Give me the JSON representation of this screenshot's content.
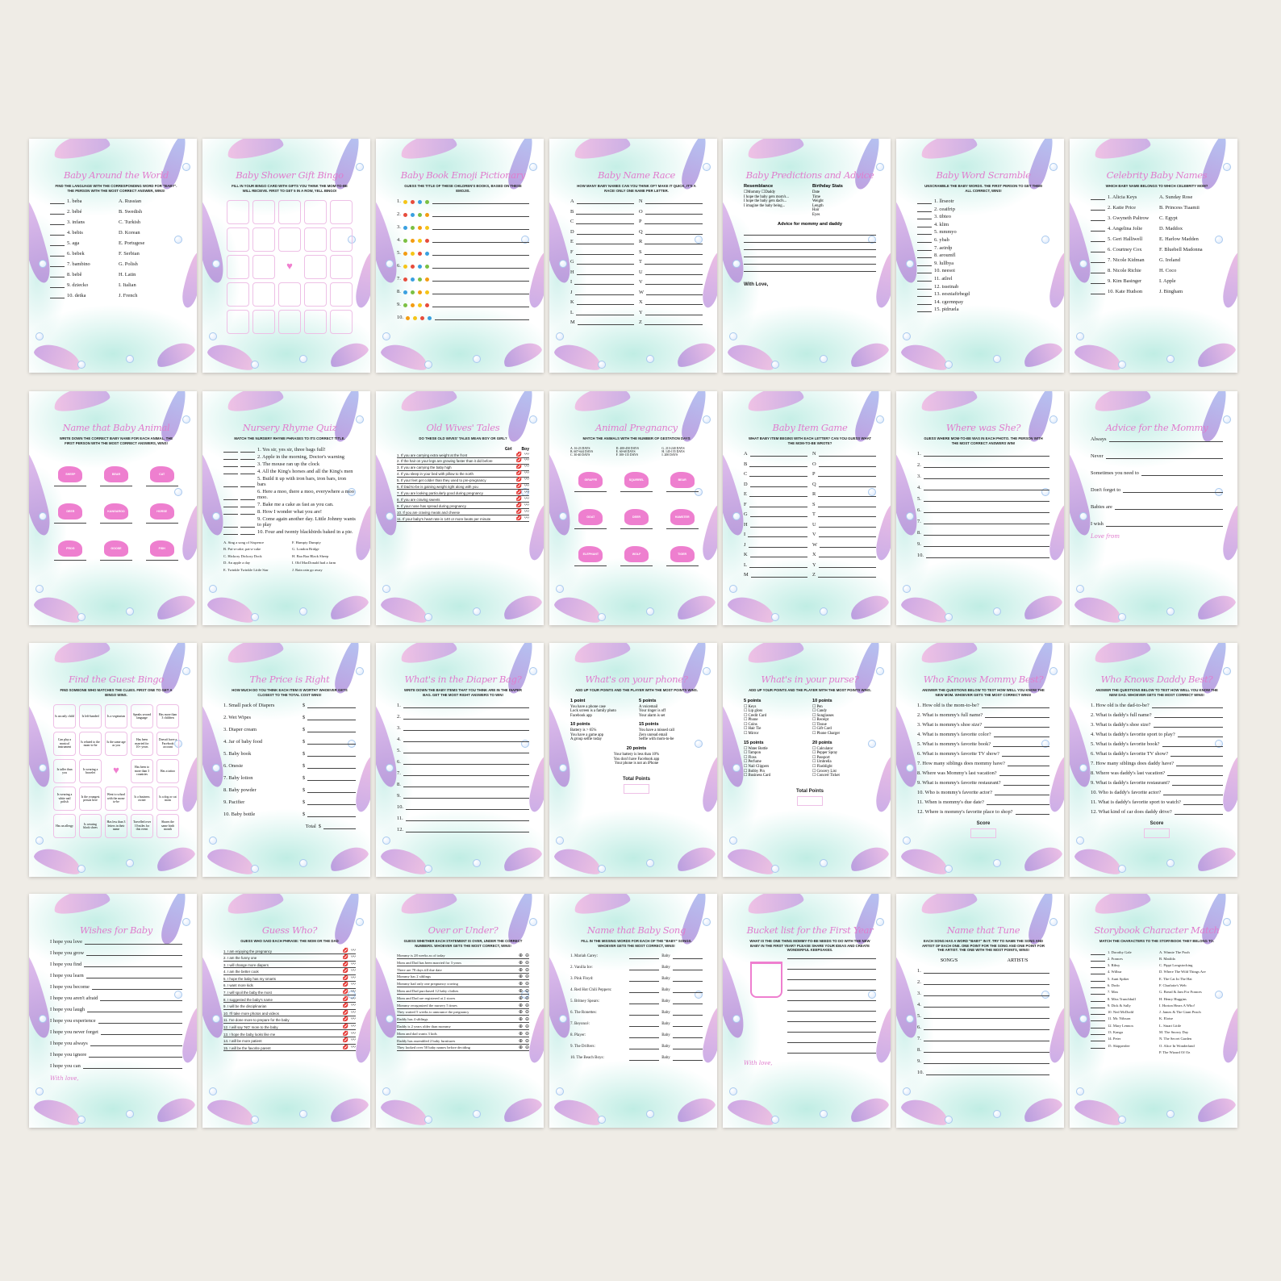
{
  "colors": {
    "background": "#efece6",
    "title_pink": "#e07ccd",
    "teal_wash": "#96e1d2",
    "tail_purple": "#b392dc",
    "tail_pink": "#f1b8e2"
  },
  "cards": [
    {
      "title": "Baby Around the World",
      "subtitle": "Find the language with the corresponding word for \"baby\". The person with the most correct answer, wins!",
      "left": [
        "1. beba",
        "2. bébé",
        "3. infans",
        "4. bebis",
        "5. aga",
        "6. bebek",
        "7. bambino",
        "8. bebê",
        "9. dziecko",
        "10. detka"
      ],
      "right": [
        "A. Russian",
        "B. Swedish",
        "C. Turkish",
        "D. Korean",
        "E. Portugese",
        "F. Serbian",
        "G. Polish",
        "H. Latin",
        "I. Italian",
        "J. French"
      ]
    },
    {
      "title": "Baby Shower Gift Bingo",
      "subtitle": "Fill in your bingo card with gifts you think the mom-to-be will receive. First to get 5 in a row, yell bingo!",
      "grid": [
        "",
        "",
        "",
        "",
        "",
        "",
        "",
        "",
        "",
        "",
        "",
        "",
        "heart",
        "",
        "",
        "",
        "",
        "",
        "",
        "",
        "",
        "",
        "",
        "",
        ""
      ]
    },
    {
      "title": "Baby Book Emoji Pictionary",
      "subtitle": "Guess the title of these children's books, based on these emojis.",
      "emoji_items": [
        "1.",
        "2.",
        "3.",
        "4.",
        "5.",
        "6.",
        "7.",
        "8.",
        "9.",
        "10."
      ]
    },
    {
      "title": "Baby Name Race",
      "subtitle": "How many baby names can you think of? Make it quick, it's a race! Only one name per letter.",
      "left": [
        "A",
        "B",
        "C",
        "D",
        "E",
        "F",
        "G",
        "H",
        "I",
        "J",
        "K",
        "L",
        "M"
      ],
      "right": [
        "N",
        "O",
        "P",
        "Q",
        "R",
        "S",
        "T",
        "U",
        "V",
        "W",
        "X",
        "Y",
        "Z"
      ],
      "lines_after": true
    },
    {
      "title": "Baby Predictions and Advice",
      "subtitle": "",
      "sections": [
        {
          "heading": "Resemblance",
          "items": [
            "☐Mommy ☐Daddy",
            "I hope the baby gets mom's...",
            "I hope the baby gets dad's...",
            "I imagine the baby being..."
          ]
        },
        {
          "heading": "Birthday Stats",
          "items": [
            "Date",
            "Time",
            "Weight",
            "Length",
            "Hair",
            "Eyes"
          ]
        },
        {
          "heading": "Advice for mommy and daddy",
          "items": [
            "",
            "",
            "",
            "",
            "",
            ""
          ]
        }
      ],
      "footer": "With Love,"
    },
    {
      "title": "Baby Word Scramble",
      "subtitle": "Unscramble the baby words. The first person to get them all correct, wins!",
      "items": [
        "1. llrseotr",
        "2. ceaifrip",
        "3. tibteo",
        "4. klim",
        "5. mmmyo",
        "6. ybab",
        "7. aeirdp",
        "8. aroumfl",
        "9. lullbya",
        "10. neesoi",
        "11. atlrel",
        "12. tsseinab",
        "13. eesniaftrbegd",
        "14. cgernnpay",
        "15. pidruela"
      ]
    },
    {
      "title": "Celebrity Baby Names",
      "subtitle": "Which baby name belongs to which celebrity mom?",
      "left": [
        "1. Alicia Keys",
        "2. Katie Price",
        "3. Gwyneth Paltrow",
        "4. Angelina Jolie",
        "5. Geri Halliwell",
        "6. Courtney Cox",
        "7. Nicole Kidman",
        "8. Nicole Richie",
        "9. Kim Basinger",
        "10. Kate Hudson"
      ],
      "right": [
        "A. Sunday Rose",
        "B. Princess Tiaamii",
        "C. Egypt",
        "D. Maddox",
        "E. Harlow Madden",
        "F. Bluebell Madonna",
        "G. Ireland",
        "H. Coco",
        "I. Apple",
        "J. Bingham"
      ]
    },
    {
      "title": "Name that Baby Animal",
      "subtitle": "Write down the correct baby name for each animal. The first person with the most correct answers, wins!",
      "animals": [
        "SHEEP",
        "BEAR",
        "CAT",
        "DEER",
        "KANGAROO",
        "HORSE",
        "FROG",
        "GOOSE",
        "FISH"
      ]
    },
    {
      "title": "Nursery Rhyme Quiz",
      "subtitle": "Match the nursery rhyme phrases to its correct title.",
      "items": [
        "1. Yes sir, yes sir, three bags full!",
        "2. Apple in the morning, Doctor's warning",
        "3. The mouse ran up the clock",
        "4. All the King's horses and all the King's men",
        "5. Build it up with iron bars, iron bars, iron bars",
        "6. Here a moo, there a moo, everywhere a moo moo.",
        "7. Bake me a cake as fast as you can.",
        "8. How I wonder what you are!",
        "9. Come again another day. Little Johnny wants to play",
        "10. Four and twenty blackbirds baked in a pie."
      ],
      "left": [
        "A. Sing a song of Sixpence",
        "B. Pat-a-cake, pat-a-cake",
        "C. Hickory Dickory Dock",
        "D. An apple a day",
        "E. Twinkle Twinkle Little Star"
      ],
      "right": [
        "F. Humpty Dumpty",
        "G. London Bridge",
        "H. Baa Baa Black Sheep",
        "I. Old MacDonald had a farm",
        "J. Rain rain go away"
      ]
    },
    {
      "title": "Old Wives' Tales",
      "subtitle": "Do these old wives' tales mean boy or girl?",
      "marks": [
        "Girl",
        "Boy"
      ],
      "mark_items": [
        "1. If you are carrying extra weight at the front",
        "2. If the hair on your legs are growing faster than it did before",
        "3. If you are carrying the baby high",
        "4. If you sleep in your bed with pillow to the north",
        "5. If your feet get colder than they used to pre-pregnancy",
        "6. If Dad-to-be is gaining weight right along with you",
        "7. If you are looking particularly good during pregnancy",
        "8. If you are craving sweets",
        "9. If your nose has spread during pregnancy",
        "10. If you are craving meats and cheese",
        "11. If your baby's heart rate is 140 or more beats per minute"
      ]
    },
    {
      "title": "Animal Pregnancy",
      "subtitle": "Match the animals with the number of gestation days",
      "options": [
        "A. 16-23 DAYS",
        "D. 400-450 DAYS",
        "G. 213-240 DAYS",
        "B. 607-644 DAYS",
        "E. 60-68 DAYS",
        "H. 145-155 DAYS",
        "C. 30-40 DAYS",
        "F. 100-115 DAYS",
        "I. 200 DAYS"
      ],
      "animals": [
        "GIRAFFE",
        "SQUIRREL",
        "BEAR",
        "GOAT",
        "DEER",
        "HAMSTER",
        "ELEPHANT",
        "WOLF",
        "TIGER"
      ]
    },
    {
      "title": "Baby Item Game",
      "subtitle": "What baby item begins with each letter? Can you guess what the mom-to-be wrote?",
      "left": [
        "A",
        "B",
        "C",
        "D",
        "E",
        "F",
        "G",
        "H",
        "I",
        "J",
        "K",
        "L",
        "M"
      ],
      "right": [
        "N",
        "O",
        "P",
        "Q",
        "R",
        "S",
        "T",
        "U",
        "V",
        "W",
        "X",
        "Y",
        "Z"
      ],
      "lines_after": true
    },
    {
      "title": "Where was She?",
      "subtitle": "Guess where mom-to-be was in each photo. The person with the most correct answers win!",
      "items": [
        "1.",
        "2.",
        "3.",
        "4.",
        "5.",
        "6.",
        "7.",
        "8.",
        "9.",
        "10."
      ],
      "lines_after": true
    },
    {
      "title": "Advice for the Mommy",
      "subtitle": "",
      "items": [
        "Always",
        "Never",
        "Sometimes you need to",
        "Don't forget to",
        "Babies are",
        "I wish"
      ],
      "lines_after": true,
      "spaced": true,
      "footer_script": "Love from"
    },
    {
      "title": "Find the Guest Bingo",
      "subtitle": "Find someone who matches the clues. First one to get a bingo wins.",
      "grid": [
        "Is an only child",
        "Is left-handed",
        "Is a vegetarian",
        "Speaks second language",
        "Has more than 3 children",
        "Can play a musical instrument",
        "Is related to the mom-to-be",
        "Is the same age as you",
        "Has been married for 10+ years",
        "Doesn't have a Facebook account",
        "Is taller than you",
        "Is wearing a bracelet",
        "heart",
        "Has been to more than 3 countries",
        "Has a tattoo",
        "Is wearing a white nail polish",
        "Is the youngest person here",
        "Went to school with the mom-to-be",
        "Is a business owner",
        "Is a dog or cat mom",
        "Has an allergy",
        "Is wearing black shoes",
        "Has less than 3 letters in their name",
        "Travelled over 10 miles for this event",
        "Shares the same birth month"
      ]
    },
    {
      "title": "The Price is Right",
      "subtitle": "How much do you think each item is worth? Whoever gets closest to the total cost wins!",
      "price_items": [
        "1. Small pack of Diapers",
        "2. Wet Wipes",
        "3. Diaper cream",
        "4. Jar of baby food",
        "5. Baby book",
        "6. Onesie",
        "7. Baby lotion",
        "8. Baby powder",
        "9. Pacifier",
        "10. Baby bottle"
      ],
      "currency": "$",
      "total_label": "Total"
    },
    {
      "title": "What's in the Diaper Bag?",
      "subtitle": "Write down the baby items that you think are in the diaper bag. Get the most right answers to win!",
      "items": [
        "1.",
        "2.",
        "3.",
        "4.",
        "5.",
        "6.",
        "7.",
        "8.",
        "9.",
        "10.",
        "11.",
        "12."
      ],
      "lines_after": true
    },
    {
      "title": "What's on your phone?",
      "subtitle": "Add up your points and the player with the most points wins.",
      "sections": [
        {
          "heading": "1 point",
          "items": [
            "You have a phone case",
            "Lock screen is a family photo",
            "Facebook app"
          ]
        },
        {
          "heading": "5 points",
          "items": [
            "A voicemail",
            "Your ringer is off",
            "Your alarm is set"
          ]
        },
        {
          "heading": "10 points",
          "items": [
            "Battery is > 65%",
            "You have a game app",
            "A group selfie today"
          ]
        },
        {
          "heading": "15 points",
          "items": [
            "You have a missed call",
            "Zero unread email",
            "Selfie with mom-to-be"
          ]
        },
        {
          "heading": "20 points",
          "items": [
            "Your battery is less than 10%",
            "You don't have Facebook app",
            "Your phone is not an iPhone"
          ]
        }
      ],
      "score_label": "Total Points"
    },
    {
      "title": "What's in your purse?",
      "subtitle": "Add up your points and the player with the most points wins.",
      "sections": [
        {
          "heading": "5 points",
          "items": [
            "☐ Keys",
            "☐ Lip gloss",
            "☐ Credit Card",
            "☐ Phone",
            "☐ Coins",
            "☐ Hair Tie",
            "☐ Mirror"
          ]
        },
        {
          "heading": "10 points",
          "items": [
            "☐ Pen",
            "☐ Candy",
            "☐ Sunglasses",
            "☐ Receipt",
            "☐ Tissue",
            "☐ Gift Card",
            "☐ Phone Charger"
          ]
        },
        {
          "heading": "15 points",
          "items": [
            "☐ Water Bottle",
            "☐ Tampon",
            "☐ Floss",
            "☐ Perfume",
            "☐ Nail Clippers",
            "☐ Bobby Pin",
            "☐ Business Card"
          ]
        },
        {
          "heading": "20 points",
          "items": [
            "☐ Calculator",
            "☐ Pepper Spray",
            "☐ Passport",
            "☐ Umbrella",
            "☐ Flashlight",
            "☐ Grocery List",
            "☐ Concert Ticket"
          ]
        }
      ],
      "score_label": "Total Points"
    },
    {
      "title": "Who Knows Mommy Best?",
      "subtitle": "Answer the questions below to test how well you know the new mom. Whoever gets the most correct wins!",
      "items": [
        "1. How old is the mom-to-be?",
        "2. What is mommy's full name?",
        "3. What is mommy's shoe size?",
        "4. What is mommy's favorite color?",
        "5. What is mommy's favorite book?",
        "6. What is mommy's favorite TV show?",
        "7. How many siblings does mommy have?",
        "8. Where was Mommy's last vacation?",
        "9. What is mommy's favorite restaurant?",
        "10. Who is mommy's favorite actor?",
        "11. When is mommy's due date?",
        "12. Where is mommy's favorite place to shop?"
      ],
      "underline": true,
      "score_label": "Score"
    },
    {
      "title": "Who Knows Daddy Best?",
      "subtitle": "Answer the questions below to test how well you know the new dad. Whoever gets the most correct wins!",
      "items": [
        "1. How old is the dad-to-be?",
        "2. What is daddy's full name?",
        "3. What is daddy's shoe size?",
        "4. What is daddy's favorite sport to play?",
        "5. What is daddy's favorite book?",
        "6. What is daddy's favorite TV show?",
        "7. How many siblings does daddy have?",
        "8. Where was daddy's last vacation?",
        "9. What is daddy's favorite restaurant?",
        "10. Who is daddy's favorite actor?",
        "11. What is daddy's favorite sport to watch?",
        "12. What kind of car does daddy drive?"
      ],
      "underline": true,
      "score_label": "Score"
    },
    {
      "title": "Wishes for Baby",
      "subtitle": "",
      "items": [
        "I hope you love",
        "I hope you grow",
        "I hope you find",
        "I hope you learn",
        "I hope you become",
        "I hope you aren't afraid",
        "I hope you laugh",
        "I hope you experience",
        "I hope you never forget",
        "I hope you always",
        "I hope you ignore",
        "I hope you can"
      ],
      "lines_after": true,
      "footer_script": "With love,"
    },
    {
      "title": "Guess Who?",
      "subtitle": "Guess who said each phrase: the mom or the dad",
      "mark_items": [
        "1. I am enjoying the pregnancy",
        "2. I am the funny one",
        "3. I will change more diapers",
        "4. I am the better cook",
        "5. I hope the baby has my smarts",
        "6. I want more kids",
        "7. I will spoil the baby the most",
        "8. I suggested the baby's name",
        "9. I will be the disciplinarian",
        "10. I'll take more photos and videos",
        "11. I've done more to prepare for the baby",
        "12. I will say 'NO' more to the baby",
        "13. I hope the baby looks like me",
        "14. I will be more patient",
        "15. I will be the favorite parent"
      ]
    },
    {
      "title": "Over or Under?",
      "subtitle": "Guess whether each statement is over, under the correct numbers. Whoever gets the most correct, wins!",
      "ou_items": [
        "Mommy is 28 weeks as of today",
        "Mom and Dad has been married for 3 years",
        "There are 78 days till due date",
        "Mommy has 2 siblings",
        "Mommy had only one pregnancy craving",
        "Mom and Dad purchased 12 baby clothes",
        "Mom and Dad are registered at 2 stores",
        "Mommy reorganized the nursery 5 times",
        "They waited 5 weeks to announce the pregnancy",
        "Daddy has 4 siblings",
        "Daddy is 2 years older than mommy",
        "Mom and dad wants 3 kids",
        "Daddy has assembled 2 baby furnitures",
        "They looked over 50 baby names before deciding"
      ]
    },
    {
      "title": "Name that Baby Song",
      "subtitle": "Fill in the missing words for each of the \"baby\" songs. Whoever gets the most correct, wins!",
      "song_items": [
        "1. Mariah Carey:",
        "2. Vanilla Ice:",
        "3. Pink Floyd:",
        "4. Red Hot Chili Peppers:",
        "5. Britney Spears:",
        "6. The Ronettes:",
        "7. Beyoncé:",
        "8. Player:",
        "9. The Drifters:",
        "10. The Beach Boys:"
      ],
      "song_word": "Baby"
    },
    {
      "title": "Bucket list for the First Year",
      "subtitle": "What is the one thing mommy-to-be needs to do with the new baby in the first year? Please share your ideas and create wonderful keepsakes.",
      "bucket_lines": [
        "",
        "",
        "",
        "",
        "",
        "",
        "",
        "",
        "",
        ""
      ],
      "footer_script": "With love,"
    },
    {
      "title": "Name that Tune",
      "subtitle": "Each song has a word \"baby\" in it. Try to name the song and artist of each one. One point for the song and one point for the artist. The one with the most points, wins!",
      "tune_headers": [
        "SONG/S",
        "ARTIST/S"
      ],
      "items": [
        "1.",
        "2.",
        "3.",
        "4.",
        "5.",
        "6.",
        "7.",
        "8.",
        "9.",
        "10."
      ],
      "lines_after": true
    },
    {
      "title": "Storybook Character Match",
      "subtitle": "Match the characters to the storybook they belong to.",
      "left": [
        "1. Dorothy Gale",
        "2. Frances",
        "3. Ribsy",
        "4. Wilbur",
        "5. Aunt Spiker",
        "6. Dodo",
        "7. Max",
        "8. Miss Trunchbull",
        "9. Dick & Sally",
        "10. Ned McDodd",
        "11. Mr. Nilsson",
        "12. Mary Lennox",
        "13. Kanga",
        "14. Peter",
        "15. Skipperdee"
      ],
      "right": [
        "A. Winnie The Pooh",
        "B. Matilda",
        "C. Pippi Longstocking",
        "D. Where The Wild Things Are",
        "E. The Cat In The Hat",
        "F. Charlotte's Web",
        "G. Bread & Jam For Frances",
        "H. Henry Huggins",
        "I. Horton Hears A Who!",
        "J. James & The Giant Peach",
        "K. Eloise",
        "L. Stuart Little",
        "M. The Snowy Day",
        "N. The Secret Garden",
        "O. Alice In Wonderland",
        "P. The Wizard Of Oz"
      ]
    }
  ]
}
